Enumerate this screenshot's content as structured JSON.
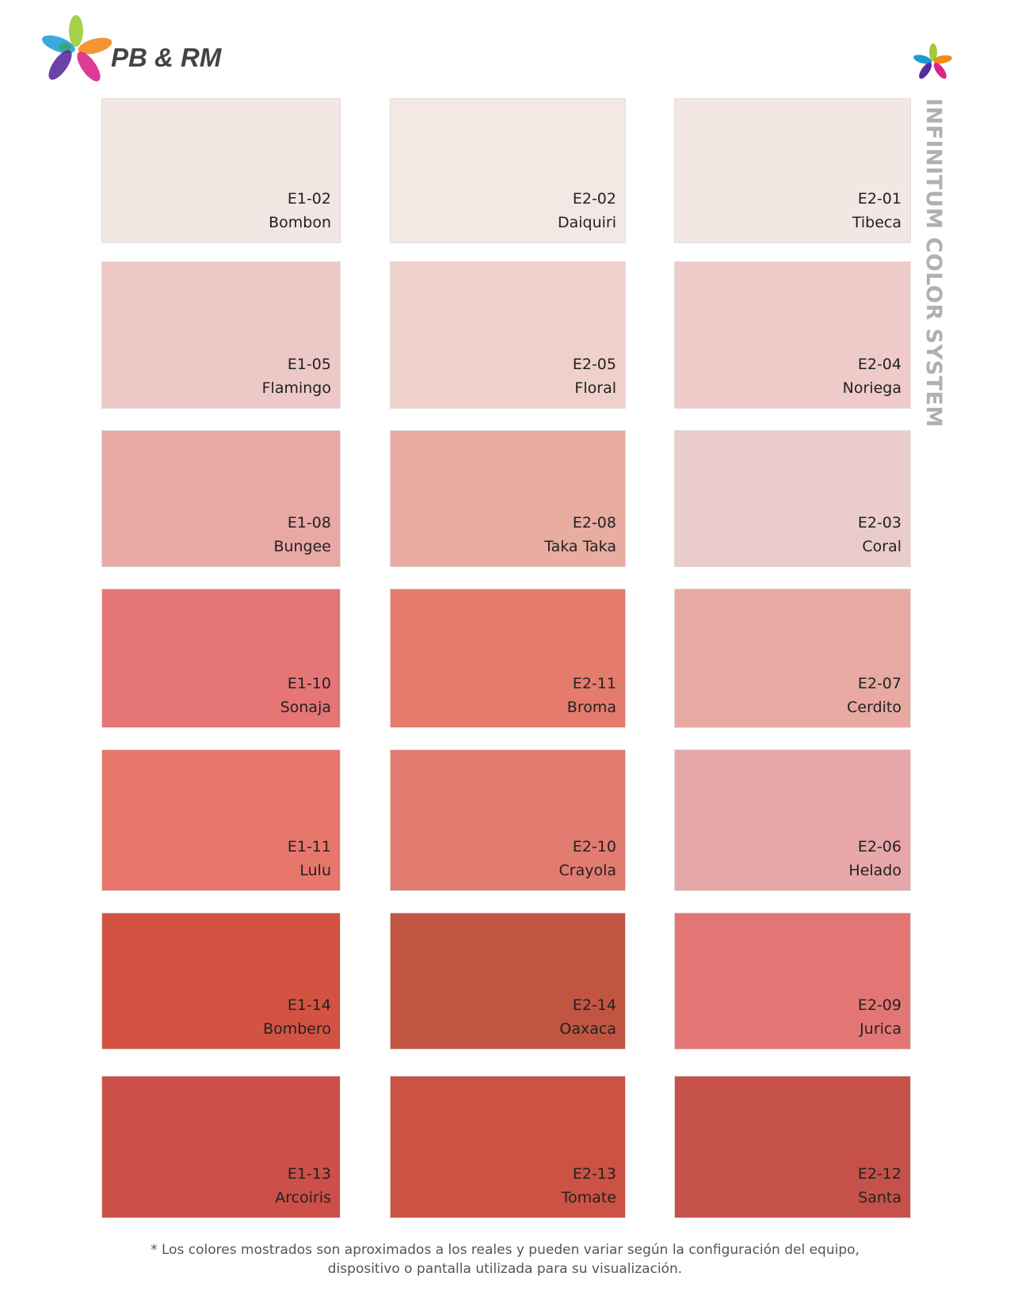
{
  "brand": {
    "name": "PB & RM",
    "subtitle": "INFINITUM COLOR SYSTEM"
  },
  "swatches": [
    [
      {
        "code": "E1-02",
        "name": "Bombon",
        "color": "#f1e6e2"
      },
      {
        "code": "E2-02",
        "name": "Daiquiri",
        "color": "#f3e8e3"
      },
      {
        "code": "E2-01",
        "name": "Tibeca",
        "color": "#f2e7e3"
      }
    ],
    [
      {
        "code": "E1-05",
        "name": "Flamingo",
        "color": "#ecc9c7"
      },
      {
        "code": "E2-05",
        "name": "Floral",
        "color": "#efd0ca"
      },
      {
        "code": "E2-04",
        "name": "Noriega",
        "color": "#eecbc8"
      }
    ],
    [
      {
        "code": "E1-08",
        "name": "Bungee",
        "color": "#e8a8a4"
      },
      {
        "code": "E2-08",
        "name": "Taka Taka",
        "color": "#e8aca1"
      },
      {
        "code": "E2-03",
        "name": "Coral",
        "color": "#eacccd"
      }
    ],
    [
      {
        "code": "E1-10",
        "name": "Sonaja",
        "color": "#e67576"
      },
      {
        "code": "E2-11",
        "name": "Broma",
        "color": "#e47b6c"
      },
      {
        "code": "E2-07",
        "name": "Cerdito",
        "color": "#e7a9a1"
      }
    ],
    [
      {
        "code": "E1-11",
        "name": "Lulu",
        "color": "#e7776d"
      },
      {
        "code": "E2-10",
        "name": "Crayola",
        "color": "#e27b70"
      },
      {
        "code": "E2-06",
        "name": "Helado",
        "color": "#e7a6a8"
      }
    ],
    [
      {
        "code": "E1-14",
        "name": "Bombero",
        "color": "#d35343"
      },
      {
        "code": "E2-14",
        "name": "Oaxaca",
        "color": "#c15541"
      },
      {
        "code": "E2-09",
        "name": "Jurica",
        "color": "#e37674"
      }
    ],
    [
      {
        "code": "E1-13",
        "name": "Arcoiris",
        "color": "#cc4f49"
      },
      {
        "code": "E2-13",
        "name": "Tomate",
        "color": "#cc5244"
      },
      {
        "code": "E2-12",
        "name": "Santa",
        "color": "#c6514a"
      }
    ]
  ],
  "footer": {
    "line1": "*  Los colores mostrados son aproximados a los reales y pueden variar según la configuración del equipo,",
    "line2": "dispositivo o pantalla utilizada para su visualización."
  }
}
